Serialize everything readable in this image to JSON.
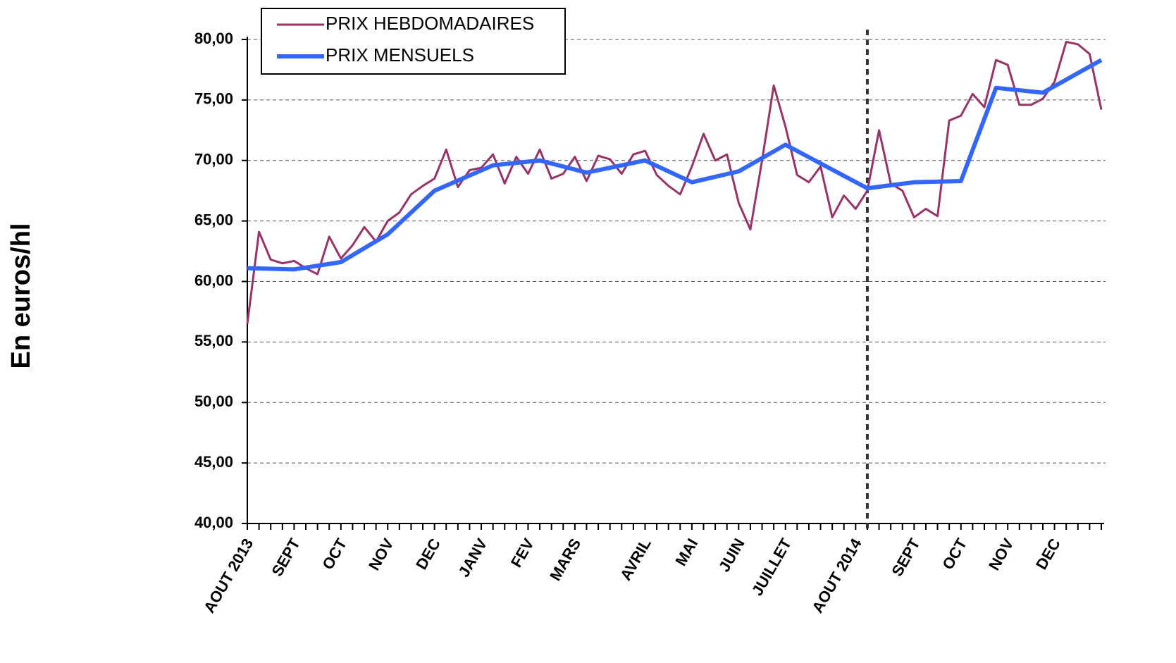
{
  "chart_data": {
    "type": "line",
    "y_label": "En euros/hl",
    "categories": [
      "AOUT 2013",
      null,
      null,
      null,
      "SEPT",
      null,
      null,
      null,
      "OCT",
      null,
      null,
      null,
      "NOV",
      null,
      null,
      null,
      "DEC",
      null,
      null,
      null,
      "JANV",
      null,
      null,
      null,
      "FEV",
      null,
      null,
      null,
      "MARS",
      null,
      null,
      null,
      null,
      null,
      "AVRIL",
      null,
      null,
      null,
      "MAI",
      null,
      null,
      null,
      "JUIN",
      null,
      null,
      null,
      "JUILLET",
      null,
      null,
      null,
      null,
      null,
      "AOUT 2014",
      null,
      null,
      null,
      null,
      "SEPT",
      null,
      null,
      null,
      "OCT",
      null,
      null,
      null,
      "NOV",
      null,
      null,
      null,
      "DEC",
      null,
      null,
      null,
      null
    ],
    "series": [
      {
        "name": "PRIX HEBDOMADAIRES",
        "color": "#993366",
        "width": 3,
        "values": [
          56.5,
          64.1,
          61.8,
          61.5,
          61.7,
          61.1,
          60.6,
          63.7,
          61.9,
          63.0,
          64.5,
          63.3,
          65.0,
          65.7,
          67.2,
          67.9,
          68.5,
          70.9,
          67.8,
          69.2,
          69.4,
          70.5,
          68.1,
          70.3,
          68.9,
          70.9,
          68.5,
          68.9,
          70.3,
          68.3,
          70.4,
          70.1,
          68.9,
          70.5,
          70.8,
          68.8,
          67.9,
          67.2,
          69.5,
          72.2,
          70.0,
          70.5,
          66.5,
          64.3,
          70.0,
          76.2,
          72.8,
          68.8,
          68.2,
          69.5,
          65.3,
          67.1,
          66.0,
          67.5,
          72.5,
          68.1,
          67.5,
          65.3,
          66.0,
          65.4,
          73.3,
          73.7,
          75.5,
          74.4,
          78.3,
          77.9,
          74.6,
          74.6,
          75.1,
          76.5,
          79.8,
          79.6,
          78.8,
          74.2
        ]
      },
      {
        "name": "PRIX MENSUELS",
        "color": "#3366ff",
        "width": 6,
        "x": [
          0,
          4,
          8,
          12,
          16,
          21,
          25,
          29,
          34,
          38,
          42,
          46,
          53,
          57,
          61,
          64,
          68,
          73
        ],
        "values": [
          61.1,
          61.0,
          61.6,
          63.9,
          67.5,
          69.6,
          70.0,
          69.0,
          70.0,
          68.2,
          69.1,
          71.3,
          67.7,
          68.2,
          68.3,
          76.0,
          75.6,
          78.3
        ]
      }
    ],
    "vline_index": 53,
    "ylim": [
      40,
      80
    ],
    "yticks": [
      {
        "value": 40,
        "label": "40,00"
      },
      {
        "value": 45,
        "label": "45,00"
      },
      {
        "value": 50,
        "label": "50,00"
      },
      {
        "value": 55,
        "label": "55,00"
      },
      {
        "value": 60,
        "label": "60,00"
      },
      {
        "value": 65,
        "label": "65,00"
      },
      {
        "value": 70,
        "label": "70,00"
      },
      {
        "value": 75,
        "label": "75,00"
      },
      {
        "value": 80,
        "label": "80,00"
      }
    ],
    "grid": true,
    "legend": "upper left"
  }
}
